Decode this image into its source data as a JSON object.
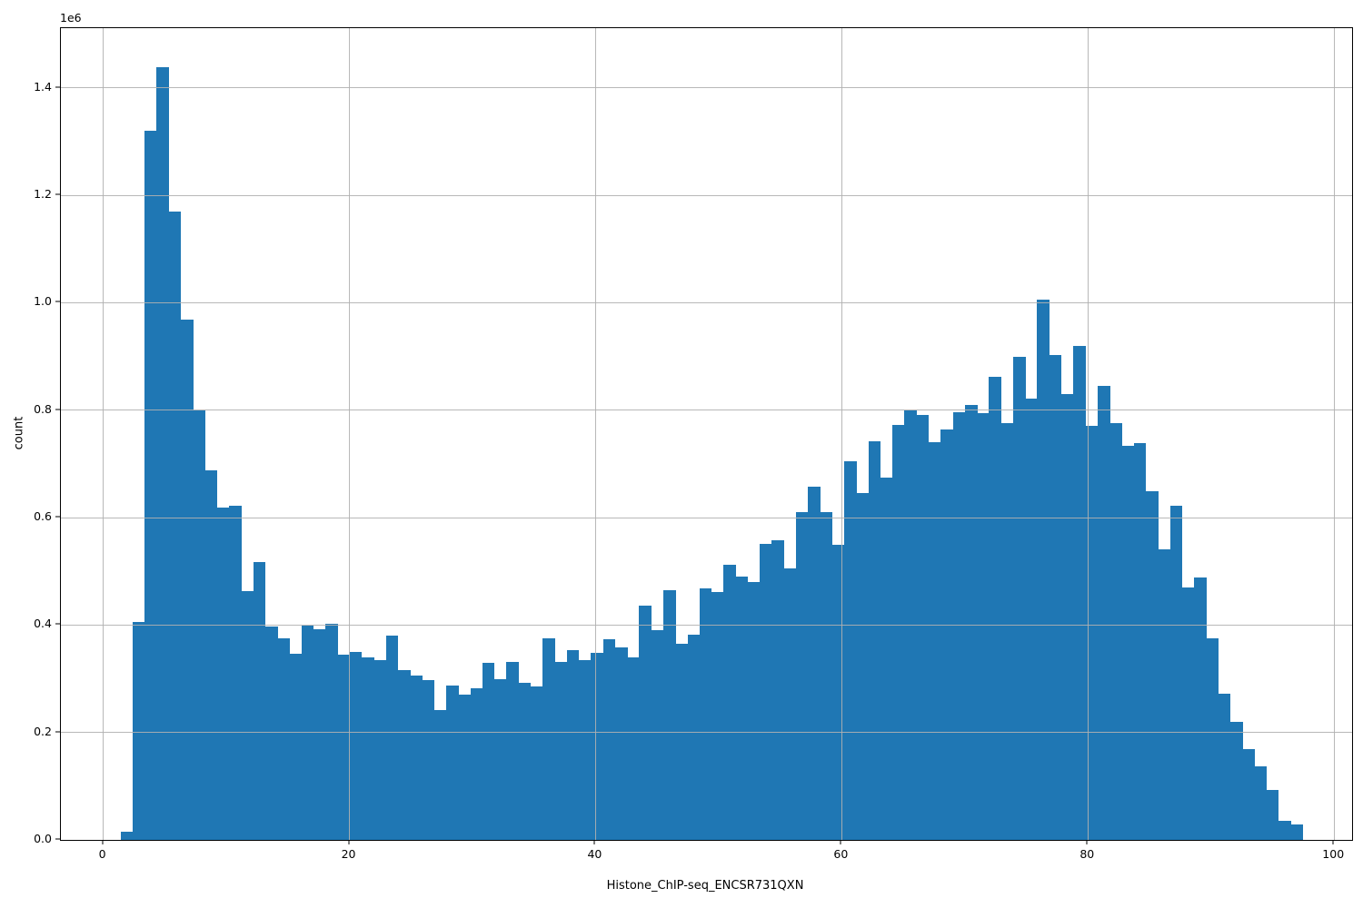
{
  "figure": {
    "background": "#ffffff"
  },
  "chart_data": {
    "type": "bar",
    "subtype": "histogram",
    "title": "",
    "xlabel": "Histone_ChIP-seq_ENCSR731QXN",
    "ylabel": "count",
    "y_offset_text": "1e6",
    "bar_color": "#1f77b4",
    "grid": true,
    "grid_color": "#b0b0b0",
    "grid_above_bars": true,
    "legend": "none",
    "xlim": [
      -3.44,
      101.46
    ],
    "ylim_e6": [
      0,
      1.5114
    ],
    "xticks": [
      0,
      20,
      40,
      60,
      80,
      100
    ],
    "yticks_e6": [
      0.0,
      0.2,
      0.4,
      0.6,
      0.8,
      1.0,
      1.2,
      1.4
    ],
    "bin_start": 1.4,
    "bin_width": 0.98,
    "counts_e6": [
      0.015,
      0.405,
      1.32,
      1.438,
      1.17,
      0.968,
      0.8,
      0.688,
      0.618,
      0.622,
      0.464,
      0.517,
      0.397,
      0.376,
      0.347,
      0.399,
      0.393,
      0.403,
      0.345,
      0.35,
      0.34,
      0.334,
      0.38,
      0.317,
      0.306,
      0.297,
      0.241,
      0.287,
      0.271,
      0.282,
      0.329,
      0.299,
      0.331,
      0.292,
      0.285,
      0.376,
      0.332,
      0.353,
      0.335,
      0.348,
      0.374,
      0.358,
      0.34,
      0.436,
      0.391,
      0.465,
      0.366,
      0.382,
      0.468,
      0.461,
      0.513,
      0.491,
      0.48,
      0.551,
      0.558,
      0.506,
      0.611,
      0.657,
      0.61,
      0.55,
      0.705,
      0.645,
      0.743,
      0.674,
      0.773,
      0.8,
      0.792,
      0.74,
      0.764,
      0.797,
      0.81,
      0.795,
      0.862,
      0.776,
      0.899,
      0.821,
      1.006,
      0.903,
      0.83,
      0.92,
      0.771,
      0.846,
      0.776,
      0.734,
      0.739,
      0.65,
      0.541,
      0.622,
      0.47,
      0.489,
      0.375,
      0.273,
      0.22,
      0.169,
      0.137,
      0.093,
      0.035,
      0.028
    ]
  }
}
